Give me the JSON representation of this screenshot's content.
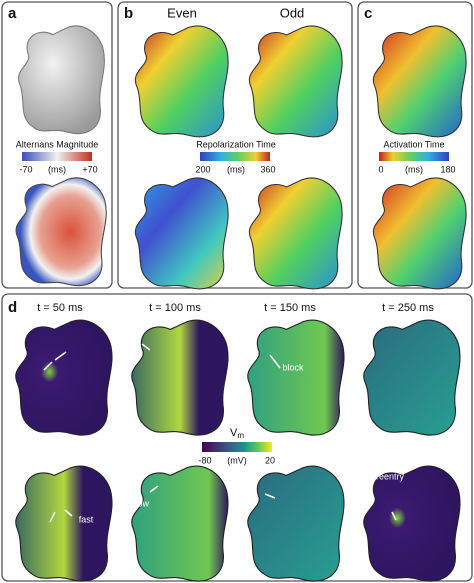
{
  "panels": {
    "a": {
      "label": "a",
      "colorbar": {
        "title": "Alternans Magnitude",
        "ticks": [
          "-70",
          "(ms)",
          "+70"
        ]
      }
    },
    "b": {
      "label": "b",
      "columns": [
        "Even",
        "Odd"
      ],
      "colorbar": {
        "title": "Repolarization Time",
        "ticks": [
          "200",
          "(ms)",
          "360"
        ]
      }
    },
    "c": {
      "label": "c",
      "colorbar": {
        "title": "Activation Time",
        "ticks": [
          "0",
          "(ms)",
          "180"
        ]
      }
    },
    "d": {
      "label": "d",
      "times": [
        "t = 50 ms",
        "t = 100 ms",
        "t = 150 ms",
        "t = 250 ms"
      ],
      "colorbar": {
        "symbol": "V",
        "subscript": "m",
        "ticks": [
          "-80",
          "(mV)",
          "20"
        ]
      },
      "annotations": [
        "fast",
        "slow",
        "block",
        "reentry"
      ]
    }
  }
}
